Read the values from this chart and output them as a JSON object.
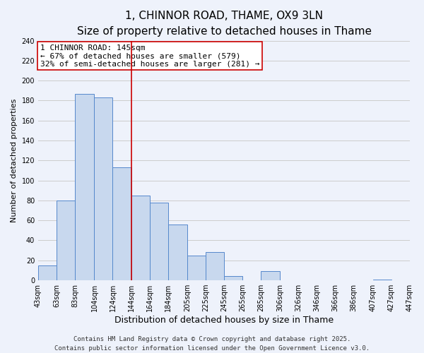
{
  "title": "1, CHINNOR ROAD, THAME, OX9 3LN",
  "subtitle": "Size of property relative to detached houses in Thame",
  "xlabel": "Distribution of detached houses by size in Thame",
  "ylabel": "Number of detached properties",
  "bar_left_edges": [
    43,
    63,
    83,
    104,
    124,
    144,
    164,
    184,
    205,
    225,
    245,
    265,
    285,
    306,
    326,
    346,
    366,
    386,
    407,
    427
  ],
  "bar_widths": [
    20,
    20,
    21,
    20,
    20,
    20,
    20,
    21,
    20,
    20,
    20,
    20,
    21,
    20,
    20,
    20,
    20,
    21,
    20,
    20
  ],
  "bar_heights": [
    15,
    80,
    187,
    183,
    113,
    85,
    78,
    56,
    25,
    28,
    4,
    0,
    9,
    0,
    0,
    0,
    0,
    0,
    1,
    0
  ],
  "bar_color": "#c8d8ee",
  "bar_edge_color": "#5588cc",
  "vline_x": 144,
  "vline_color": "#cc0000",
  "annotation_line1": "1 CHINNOR ROAD: 145sqm",
  "annotation_line2": "← 67% of detached houses are smaller (579)",
  "annotation_line3": "32% of semi-detached houses are larger (281) →",
  "annotation_box_color": "#ffffff",
  "annotation_box_edge_color": "#cc0000",
  "annotation_fontsize": 8,
  "xlim": [
    43,
    447
  ],
  "ylim": [
    0,
    240
  ],
  "yticks": [
    0,
    20,
    40,
    60,
    80,
    100,
    120,
    140,
    160,
    180,
    200,
    220,
    240
  ],
  "xtick_labels": [
    "43sqm",
    "63sqm",
    "83sqm",
    "104sqm",
    "124sqm",
    "144sqm",
    "164sqm",
    "184sqm",
    "205sqm",
    "225sqm",
    "245sqm",
    "265sqm",
    "285sqm",
    "306sqm",
    "326sqm",
    "346sqm",
    "366sqm",
    "386sqm",
    "407sqm",
    "427sqm",
    "447sqm"
  ],
  "xtick_positions": [
    43,
    63,
    83,
    104,
    124,
    144,
    164,
    184,
    205,
    225,
    245,
    265,
    285,
    306,
    326,
    346,
    366,
    386,
    407,
    427,
    447
  ],
  "grid_color": "#cccccc",
  "background_color": "#eef2fb",
  "footer_text": "Contains HM Land Registry data © Crown copyright and database right 2025.\nContains public sector information licensed under the Open Government Licence v3.0.",
  "title_fontsize": 11,
  "subtitle_fontsize": 9,
  "xlabel_fontsize": 9,
  "ylabel_fontsize": 8,
  "tick_fontsize": 7,
  "footer_fontsize": 6.5
}
